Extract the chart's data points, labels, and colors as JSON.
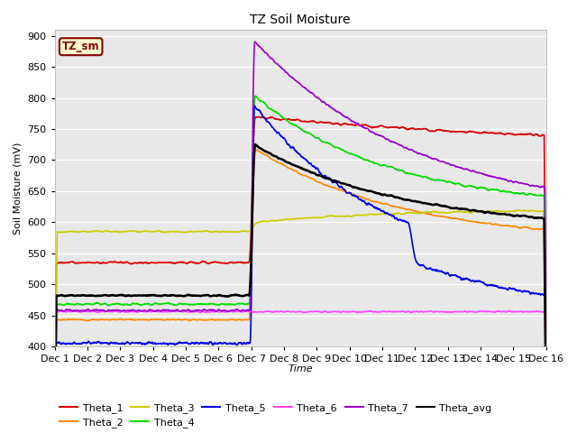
{
  "title": "TZ Soil Moisture",
  "xlabel": "Time",
  "ylabel": "Soil Moisture (mV)",
  "ylim": [
    400,
    910
  ],
  "yticks": [
    400,
    450,
    500,
    550,
    600,
    650,
    700,
    750,
    800,
    850,
    900
  ],
  "xlim": [
    0,
    15
  ],
  "xtick_labels": [
    "Dec 1",
    "Dec 2",
    "Dec 3",
    "Dec 4",
    "Dec 5",
    "Dec 6",
    "Dec 7",
    "Dec 8",
    "Dec 9",
    "Dec 10",
    "Dec 11",
    "Dec 12",
    "Dec 13",
    "Dec 14",
    "Dec 15",
    "Dec 16"
  ],
  "bg_color": "#e8e8e8",
  "series_order": [
    "Theta_1",
    "Theta_2",
    "Theta_3",
    "Theta_4",
    "Theta_5",
    "Theta_6",
    "Theta_7",
    "Theta_avg"
  ],
  "series": {
    "Theta_1": {
      "color": "#dd0000",
      "lw": 1.2,
      "pre": 535,
      "spike": 770,
      "post": 715,
      "noise": 3
    },
    "Theta_2": {
      "color": "#ff8800",
      "lw": 1.2,
      "pre": 443,
      "spike": 720,
      "post": 567,
      "noise": 2
    },
    "Theta_3": {
      "color": "#cccc00",
      "lw": 1.2,
      "pre": 585,
      "spike": 600,
      "post": 622,
      "noise": 3
    },
    "Theta_4": {
      "color": "#00dd00",
      "lw": 1.2,
      "pre": 468,
      "spike": 805,
      "post": 622,
      "noise": 3
    },
    "Theta_5": {
      "color": "#0000ee",
      "lw": 1.2,
      "pre": 405,
      "spike": 790,
      "post": 512,
      "noise": 3,
      "step_day": 10.8,
      "step_drop": 60
    },
    "Theta_6": {
      "color": "#ff44ff",
      "lw": 1.2,
      "pre": 456,
      "spike": 456,
      "post": 456,
      "noise": 1.5
    },
    "Theta_7": {
      "color": "#9900cc",
      "lw": 1.2,
      "pre": 458,
      "spike": 893,
      "post": 608,
      "noise": 2
    },
    "Theta_avg": {
      "color": "#000000",
      "lw": 1.8,
      "pre": 482,
      "spike": 725,
      "post": 588,
      "noise": 2
    }
  },
  "legend_label": "TZ_sm",
  "legend_bg": "#ffffcc",
  "legend_border": "#880000",
  "spike_day": 6.05
}
